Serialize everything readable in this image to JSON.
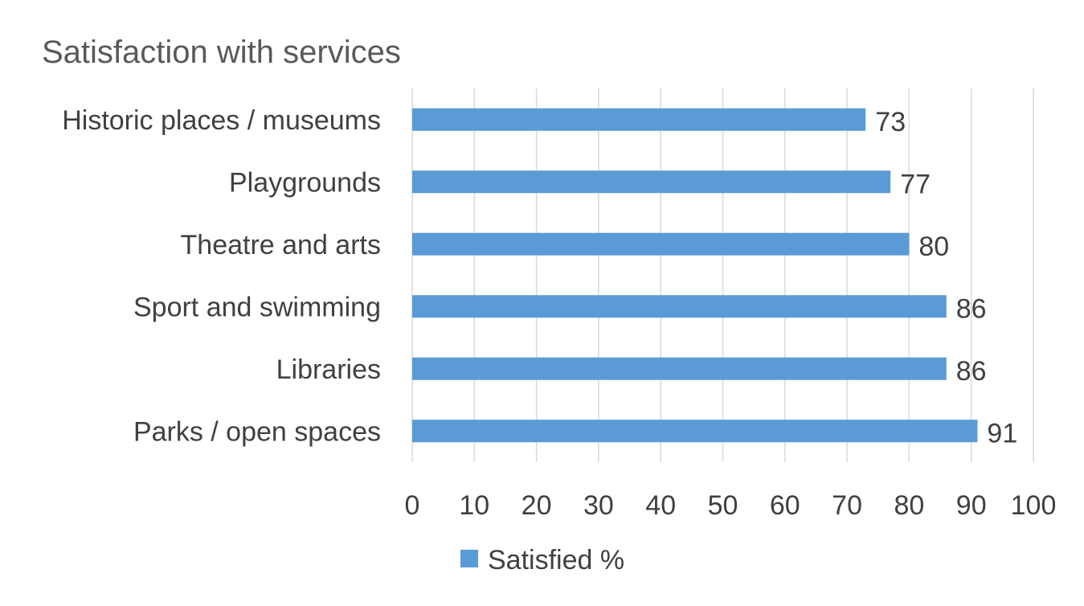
{
  "chart_data": {
    "type": "bar",
    "orientation": "horizontal",
    "title": "Satisfaction with services",
    "xlabel": "",
    "ylabel": "",
    "categories": [
      "Historic places / museums",
      "Playgrounds",
      "Theatre and arts",
      "Sport  and swimming",
      "Libraries",
      "Parks / open spaces"
    ],
    "series": [
      {
        "name": "Satisfied %",
        "color": "#5b9bd5",
        "values": [
          73,
          77,
          80,
          86,
          86,
          91
        ]
      }
    ],
    "xlim": [
      0,
      100
    ],
    "xticks": [
      0,
      10,
      20,
      30,
      40,
      50,
      60,
      70,
      80,
      90,
      100
    ],
    "grid": true,
    "data_labels": true,
    "legend": {
      "placement": "bottom"
    }
  }
}
